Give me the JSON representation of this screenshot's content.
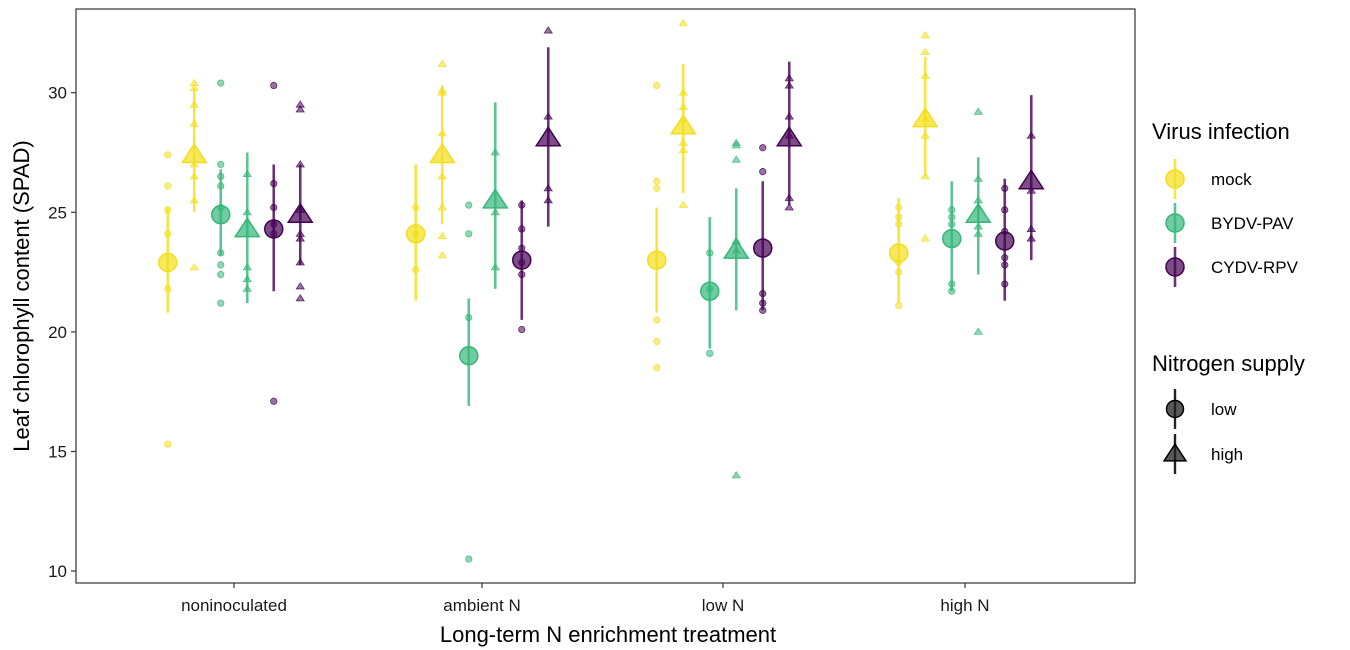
{
  "chart_data": {
    "type": "scatter",
    "xlabel": "Long-term N enrichment treatment",
    "ylabel": "Leaf chlorophyll content (SPAD)",
    "ylim": [
      9.5,
      33.5
    ],
    "yticks": [
      10,
      15,
      20,
      25,
      30
    ],
    "categories": [
      "noninoculated",
      "ambient N",
      "low N",
      "high N"
    ],
    "grid": false,
    "legend_position": "right",
    "color_legend": {
      "title": "Virus infection",
      "items": [
        {
          "name": "mock",
          "color": "#F3DE1B"
        },
        {
          "name": "BYDV-PAV",
          "color": "#35B779"
        },
        {
          "name": "CYDV-RPV",
          "color": "#440154"
        }
      ]
    },
    "shape_legend": {
      "title": "Nitrogen supply",
      "items": [
        {
          "name": "low",
          "shape": "circle"
        },
        {
          "name": "high",
          "shape": "triangle"
        }
      ]
    },
    "groups": [
      {
        "category": "noninoculated",
        "virus": "mock",
        "nitrogen": "low",
        "mean": 22.9,
        "lower": 20.8,
        "upper": 25.2,
        "points": [
          27.4,
          26.1,
          25.1,
          24.1,
          21.8,
          15.3
        ]
      },
      {
        "category": "noninoculated",
        "virus": "mock",
        "nitrogen": "high",
        "mean": 27.4,
        "lower": 25.0,
        "upper": 30.2,
        "points": [
          30.4,
          30.2,
          29.5,
          28.7,
          27.0,
          26.5,
          25.5,
          22.7
        ]
      },
      {
        "category": "noninoculated",
        "virus": "BYDV-PAV",
        "nitrogen": "low",
        "mean": 24.9,
        "lower": 23.2,
        "upper": 26.8,
        "points": [
          30.4,
          27.0,
          26.5,
          26.1,
          25.2,
          23.3,
          22.8,
          22.4,
          21.2
        ]
      },
      {
        "category": "noninoculated",
        "virus": "BYDV-PAV",
        "nitrogen": "high",
        "mean": 24.3,
        "lower": 21.2,
        "upper": 27.5,
        "points": [
          26.6,
          25.0,
          22.7,
          22.2,
          21.8
        ]
      },
      {
        "category": "noninoculated",
        "virus": "CYDV-RPV",
        "nitrogen": "low",
        "mean": 24.3,
        "lower": 21.7,
        "upper": 27.0,
        "points": [
          30.3,
          26.2,
          25.2,
          24.5,
          24.1,
          17.1
        ]
      },
      {
        "category": "noninoculated",
        "virus": "CYDV-RPV",
        "nitrogen": "high",
        "mean": 24.9,
        "lower": 22.8,
        "upper": 27.0,
        "points": [
          29.5,
          29.3,
          27.0,
          25.1,
          24.1,
          23.9,
          22.9,
          21.9,
          21.4
        ]
      },
      {
        "category": "ambient N",
        "virus": "mock",
        "nitrogen": "low",
        "mean": 24.1,
        "lower": 21.3,
        "upper": 27.0,
        "points": [
          25.2,
          24.1,
          22.6
        ]
      },
      {
        "category": "ambient N",
        "virus": "mock",
        "nitrogen": "high",
        "mean": 27.4,
        "lower": 24.5,
        "upper": 30.3,
        "points": [
          31.2,
          30.1,
          30.0,
          28.3,
          26.5,
          25.2,
          24.0,
          23.2
        ]
      },
      {
        "category": "ambient N",
        "virus": "BYDV-PAV",
        "nitrogen": "low",
        "mean": 19.0,
        "lower": 16.9,
        "upper": 21.4,
        "points": [
          25.3,
          24.1,
          20.6,
          10.5
        ]
      },
      {
        "category": "ambient N",
        "virus": "BYDV-PAV",
        "nitrogen": "high",
        "mean": 25.5,
        "lower": 21.8,
        "upper": 29.6,
        "points": [
          27.5,
          25.0,
          22.7
        ]
      },
      {
        "category": "ambient N",
        "virus": "CYDV-RPV",
        "nitrogen": "low",
        "mean": 23.0,
        "lower": 20.5,
        "upper": 25.5,
        "points": [
          25.3,
          24.3,
          23.5,
          22.9,
          22.4,
          20.1
        ]
      },
      {
        "category": "ambient N",
        "virus": "CYDV-RPV",
        "nitrogen": "high",
        "mean": 28.1,
        "lower": 24.4,
        "upper": 31.9,
        "points": [
          32.6,
          29.0,
          26.0,
          25.5
        ]
      },
      {
        "category": "low N",
        "virus": "mock",
        "nitrogen": "low",
        "mean": 23.0,
        "lower": 20.8,
        "upper": 25.2,
        "points": [
          30.3,
          26.3,
          26.0,
          20.5,
          19.6,
          18.5
        ]
      },
      {
        "category": "low N",
        "virus": "mock",
        "nitrogen": "high",
        "mean": 28.6,
        "lower": 25.8,
        "upper": 31.2,
        "points": [
          32.9,
          30.0,
          29.4,
          28.9,
          27.9,
          27.6,
          25.3
        ]
      },
      {
        "category": "low N",
        "virus": "BYDV-PAV",
        "nitrogen": "low",
        "mean": 21.7,
        "lower": 19.3,
        "upper": 24.8,
        "points": [
          23.3,
          21.8,
          19.1
        ]
      },
      {
        "category": "low N",
        "virus": "BYDV-PAV",
        "nitrogen": "high",
        "mean": 23.4,
        "lower": 20.9,
        "upper": 26.0,
        "points": [
          27.9,
          27.8,
          27.2,
          23.8,
          23.4,
          14.0
        ]
      },
      {
        "category": "low N",
        "virus": "CYDV-RPV",
        "nitrogen": "low",
        "mean": 23.5,
        "lower": 20.9,
        "upper": 26.3,
        "points": [
          27.7,
          26.7,
          21.6,
          21.2,
          20.9
        ]
      },
      {
        "category": "low N",
        "virus": "CYDV-RPV",
        "nitrogen": "high",
        "mean": 28.1,
        "lower": 25.3,
        "upper": 31.3,
        "points": [
          30.6,
          30.3,
          29.0,
          28.2,
          25.6,
          25.2
        ]
      },
      {
        "category": "high N",
        "virus": "mock",
        "nitrogen": "low",
        "mean": 23.3,
        "lower": 21.2,
        "upper": 25.6,
        "points": [
          25.2,
          24.8,
          24.5,
          22.9,
          22.5,
          21.1
        ]
      },
      {
        "category": "high N",
        "virus": "mock",
        "nitrogen": "high",
        "mean": 28.9,
        "lower": 26.5,
        "upper": 31.5,
        "points": [
          32.4,
          31.7,
          30.7,
          28.9,
          28.2,
          26.5,
          23.9
        ]
      },
      {
        "category": "high N",
        "virus": "BYDV-PAV",
        "nitrogen": "low",
        "mean": 23.9,
        "lower": 21.7,
        "upper": 26.3,
        "points": [
          25.1,
          24.8,
          24.5,
          22.0,
          21.7
        ]
      },
      {
        "category": "high N",
        "virus": "BYDV-PAV",
        "nitrogen": "high",
        "mean": 24.9,
        "lower": 22.4,
        "upper": 27.3,
        "points": [
          29.2,
          26.4,
          25.5,
          24.4,
          24.1,
          20.0
        ]
      },
      {
        "category": "high N",
        "virus": "CYDV-RPV",
        "nitrogen": "low",
        "mean": 23.8,
        "lower": 21.3,
        "upper": 26.4,
        "points": [
          26.0,
          25.1,
          24.2,
          23.1,
          22.8,
          22.0
        ]
      },
      {
        "category": "high N",
        "virus": "CYDV-RPV",
        "nitrogen": "high",
        "mean": 26.3,
        "lower": 23.0,
        "upper": 29.9,
        "points": [
          28.2,
          25.9,
          24.3,
          23.9
        ]
      }
    ]
  }
}
